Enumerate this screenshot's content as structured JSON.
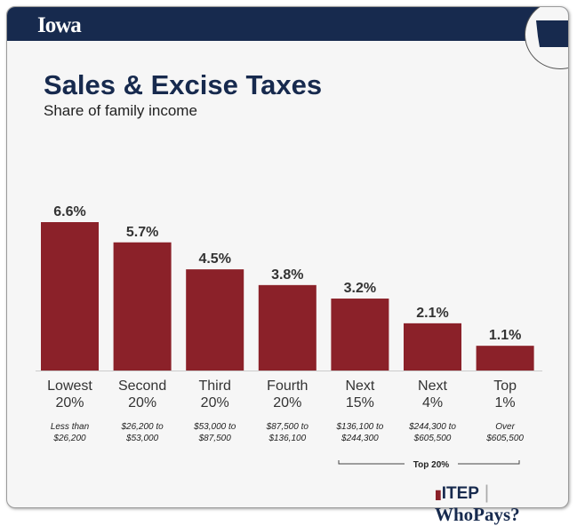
{
  "header": {
    "state": "Iowa"
  },
  "logo": {
    "itep": "ITEP",
    "separator": "|",
    "whopays": "WhoPays?"
  },
  "colors": {
    "bar": "#8b2129",
    "navy": "#172a4e"
  },
  "chart_data": {
    "type": "bar",
    "title": "Sales & Excise Taxes",
    "subtitle": "Share of family income",
    "categories": [
      [
        "Lowest",
        "20%"
      ],
      [
        "Second",
        "20%"
      ],
      [
        "Third",
        "20%"
      ],
      [
        "Fourth",
        "20%"
      ],
      [
        "Next",
        "15%"
      ],
      [
        "Next",
        "4%"
      ],
      [
        "Top",
        "1%"
      ]
    ],
    "income_ranges": [
      [
        "Less than",
        "$26,200"
      ],
      [
        "$26,200 to",
        "$53,000"
      ],
      [
        "$53,000 to",
        "$87,500"
      ],
      [
        "$87,500 to",
        "$136,100"
      ],
      [
        "$136,100 to",
        "$244,300"
      ],
      [
        "$244,300 to",
        "$605,500"
      ],
      [
        "Over",
        "$605,500"
      ]
    ],
    "values": [
      6.6,
      5.7,
      4.5,
      3.8,
      3.2,
      2.1,
      1.1
    ],
    "value_labels": [
      "6.6%",
      "5.7%",
      "4.5%",
      "3.8%",
      "3.2%",
      "2.1%",
      "1.1%"
    ],
    "bracket_label": "Top 20%",
    "ylim": [
      0,
      6.6
    ]
  }
}
